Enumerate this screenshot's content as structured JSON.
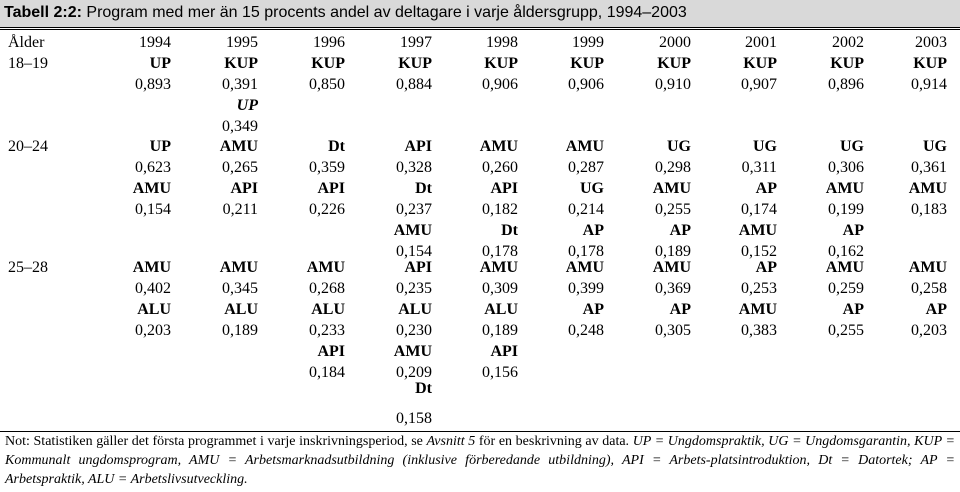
{
  "title": {
    "label": "Tabell 2:2:",
    "text": "Program med mer än 15 procents andel av deltagare i varje åldersgrupp, 1994–2003"
  },
  "header": {
    "age_label": "Ålder",
    "years": [
      "1994",
      "1995",
      "1996",
      "1997",
      "1998",
      "1999",
      "2000",
      "2001",
      "2002",
      "2003"
    ]
  },
  "groups": [
    {
      "age": "18–19",
      "columns": [
        [
          {
            "p": "UP",
            "v": "0,893"
          }
        ],
        [
          {
            "p": "KUP",
            "v": "0,391"
          },
          {
            "p": "UP",
            "v": "0,349",
            "italic": true
          }
        ],
        [
          {
            "p": "KUP",
            "v": "0,850"
          }
        ],
        [
          {
            "p": "KUP",
            "v": "0,884"
          }
        ],
        [
          {
            "p": "KUP",
            "v": "0,906"
          }
        ],
        [
          {
            "p": "KUP",
            "v": "0,906"
          }
        ],
        [
          {
            "p": "KUP",
            "v": "0,910"
          }
        ],
        [
          {
            "p": "KUP",
            "v": "0,907"
          }
        ],
        [
          {
            "p": "KUP",
            "v": "0,896"
          }
        ],
        [
          {
            "p": "KUP",
            "v": "0,914"
          }
        ]
      ]
    },
    {
      "age": "20–24",
      "columns": [
        [
          {
            "p": "UP",
            "v": "0,623"
          },
          {
            "p": "AMU",
            "v": "0,154"
          }
        ],
        [
          {
            "p": "AMU",
            "v": "0,265"
          },
          {
            "p": "API",
            "v": "0,211"
          }
        ],
        [
          {
            "p": "Dt",
            "v": "0,359"
          },
          {
            "p": "API",
            "v": "0,226"
          }
        ],
        [
          {
            "p": "API",
            "v": "0,328"
          },
          {
            "p": "Dt",
            "v": "0,237"
          },
          {
            "p": "AMU",
            "v": "0,154"
          }
        ],
        [
          {
            "p": "AMU",
            "v": "0,260"
          },
          {
            "p": "API",
            "v": "0,182"
          },
          {
            "p": "Dt",
            "v": "0,178"
          }
        ],
        [
          {
            "p": "AMU",
            "v": "0,287"
          },
          {
            "p": "UG",
            "v": "0,214"
          },
          {
            "p": "AP",
            "v": "0,178"
          }
        ],
        [
          {
            "p": "UG",
            "v": "0,298"
          },
          {
            "p": "AMU",
            "v": "0,255"
          },
          {
            "p": "AP",
            "v": "0,189"
          }
        ],
        [
          {
            "p": "UG",
            "v": "0,311"
          },
          {
            "p": "AP",
            "v": "0,174"
          },
          {
            "p": "AMU",
            "v": "0,152"
          }
        ],
        [
          {
            "p": "UG",
            "v": "0,306"
          },
          {
            "p": "AMU",
            "v": "0,199"
          },
          {
            "p": "AP",
            "v": "0,162"
          }
        ],
        [
          {
            "p": "UG",
            "v": "0,361"
          },
          {
            "p": "AMU",
            "v": "0,183"
          }
        ]
      ]
    },
    {
      "age": "25–28",
      "columns": [
        [
          {
            "p": "AMU",
            "v": "0,402"
          },
          {
            "p": "ALU",
            "v": "0,203"
          }
        ],
        [
          {
            "p": "AMU",
            "v": "0,345"
          },
          {
            "p": "ALU",
            "v": "0,189"
          }
        ],
        [
          {
            "p": "AMU",
            "v": "0,268"
          },
          {
            "p": "ALU",
            "v": "0,233"
          },
          {
            "p": "API",
            "v": "0,184"
          }
        ],
        [
          {
            "p": "API",
            "v": "0,235"
          },
          {
            "p": "ALU",
            "v": "0,230"
          },
          {
            "p": "AMU",
            "v": "0,209"
          },
          {
            "p": "Dt",
            "v": "0,158"
          }
        ],
        [
          {
            "p": "AMU",
            "v": "0,309"
          },
          {
            "p": "ALU",
            "v": "0,189"
          },
          {
            "p": "API",
            "v": "0,156"
          }
        ],
        [
          {
            "p": "AMU",
            "v": "0,399"
          },
          {
            "p": "AP",
            "v": "0,248"
          }
        ],
        [
          {
            "p": "AMU",
            "v": "0,369"
          },
          {
            "p": "AP",
            "v": "0,305"
          }
        ],
        [
          {
            "p": "AP",
            "v": "0,253"
          },
          {
            "p": "AMU",
            "v": "0,383"
          }
        ],
        [
          {
            "p": "AMU",
            "v": "0,259"
          },
          {
            "p": "AP",
            "v": "0,255"
          }
        ],
        [
          {
            "p": "AMU",
            "v": "0,258"
          },
          {
            "p": "AP",
            "v": "0,203"
          }
        ]
      ]
    }
  ],
  "note": {
    "lead": "Not: Statistiken gäller det första programmet i varje inskrivningsperiod, se ",
    "ref": "Avsnitt 5",
    "mid": " för en beskrivning av data. ",
    "defs": "UP = Ungdomspraktik, UG = Ungdomsgarantin, KUP = Kommunalt ungdomsprogram, AMU = Arbetsmarknadsutbildning (inklusive förberedande utbildning), API = Arbets-platsintroduktion, Dt = Datortek; AP = Arbetspraktik, ALU = Arbetslivsutveckling."
  }
}
